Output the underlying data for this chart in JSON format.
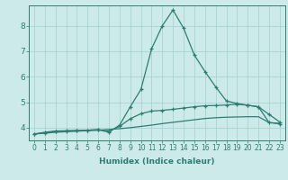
{
  "xlabel": "Humidex (Indice chaleur)",
  "x": [
    0,
    1,
    2,
    3,
    4,
    5,
    6,
    7,
    8,
    9,
    10,
    11,
    12,
    13,
    14,
    15,
    16,
    17,
    18,
    19,
    20,
    21,
    22,
    23
  ],
  "line1": [
    3.75,
    3.82,
    3.87,
    3.88,
    3.89,
    3.9,
    3.92,
    3.82,
    4.1,
    4.82,
    5.5,
    7.1,
    8.0,
    8.62,
    7.9,
    6.85,
    6.2,
    5.6,
    5.05,
    4.95,
    4.88,
    4.82,
    4.2,
    4.15
  ],
  "line2": [
    3.75,
    3.8,
    3.85,
    3.87,
    3.88,
    3.9,
    3.92,
    3.87,
    4.05,
    4.35,
    4.55,
    4.65,
    4.68,
    4.72,
    4.77,
    4.82,
    4.86,
    4.87,
    4.89,
    4.92,
    4.88,
    4.82,
    4.52,
    4.22
  ],
  "line3": [
    3.75,
    3.78,
    3.82,
    3.84,
    3.86,
    3.88,
    3.9,
    3.93,
    3.96,
    4.0,
    4.05,
    4.1,
    4.16,
    4.21,
    4.26,
    4.31,
    4.36,
    4.39,
    4.41,
    4.42,
    4.43,
    4.43,
    4.2,
    4.17
  ],
  "line_color": "#2e7d72",
  "bg_color": "#cdeaea",
  "grid_color": "#aad4d4",
  "ylim": [
    3.5,
    8.8
  ],
  "xlim": [
    -0.5,
    23.5
  ],
  "yticks": [
    4,
    5,
    6,
    7,
    8
  ],
  "xticks": [
    0,
    1,
    2,
    3,
    4,
    5,
    6,
    7,
    8,
    9,
    10,
    11,
    12,
    13,
    14,
    15,
    16,
    17,
    18,
    19,
    20,
    21,
    22,
    23
  ],
  "xlabel_fontsize": 6.5,
  "tick_fontsize": 5.5,
  "ytick_fontsize": 6.5
}
